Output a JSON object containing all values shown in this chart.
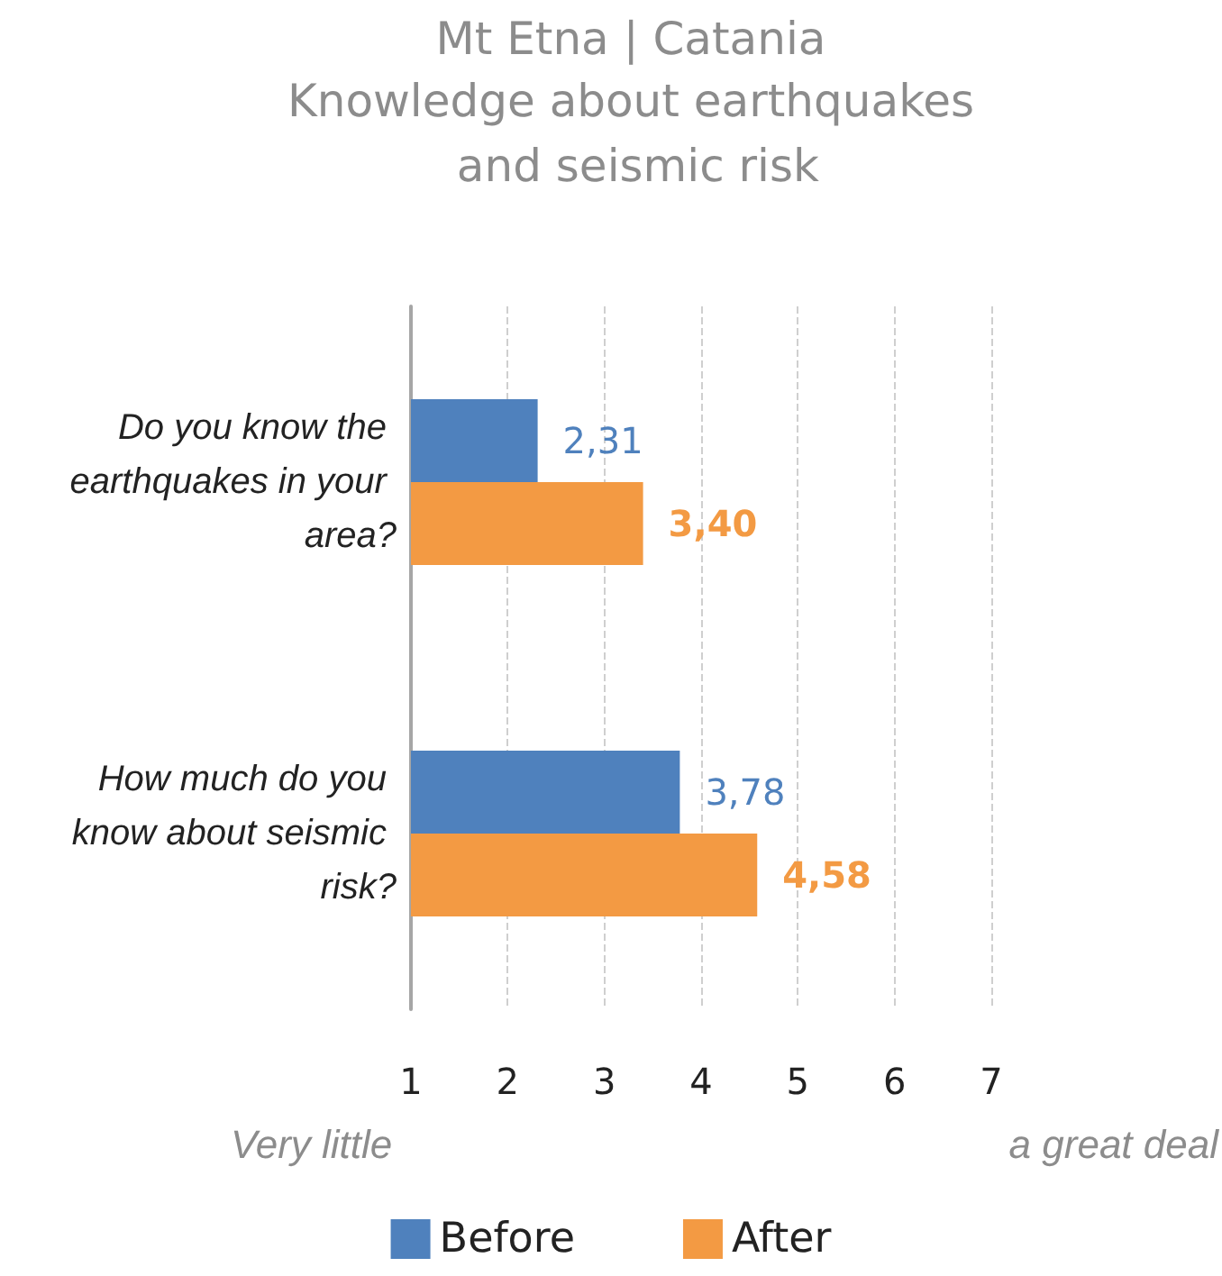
{
  "chart_data": {
    "type": "bar",
    "orientation": "horizontal",
    "title": "Mt Etna | Catania",
    "subtitle": "Knowledge about earthquakes and seismic risk",
    "categories": [
      "Do you know the earthquakes in your area?",
      "How much do you know about seismic risk?"
    ],
    "series": [
      {
        "name": "Before",
        "color": "#4f81bd",
        "values": [
          2.31,
          3.78
        ],
        "value_labels": [
          "2,31",
          "3,78"
        ]
      },
      {
        "name": "After",
        "color": "#f39a43",
        "values": [
          3.4,
          4.58
        ],
        "value_labels": [
          "3,40",
          "4,58"
        ]
      }
    ],
    "xlim": [
      1,
      7
    ],
    "xticks": [
      1,
      2,
      3,
      4,
      5,
      6,
      7
    ],
    "grid": "x",
    "legend": "bottom",
    "annotations": [
      "Very little",
      "a great deal"
    ]
  }
}
